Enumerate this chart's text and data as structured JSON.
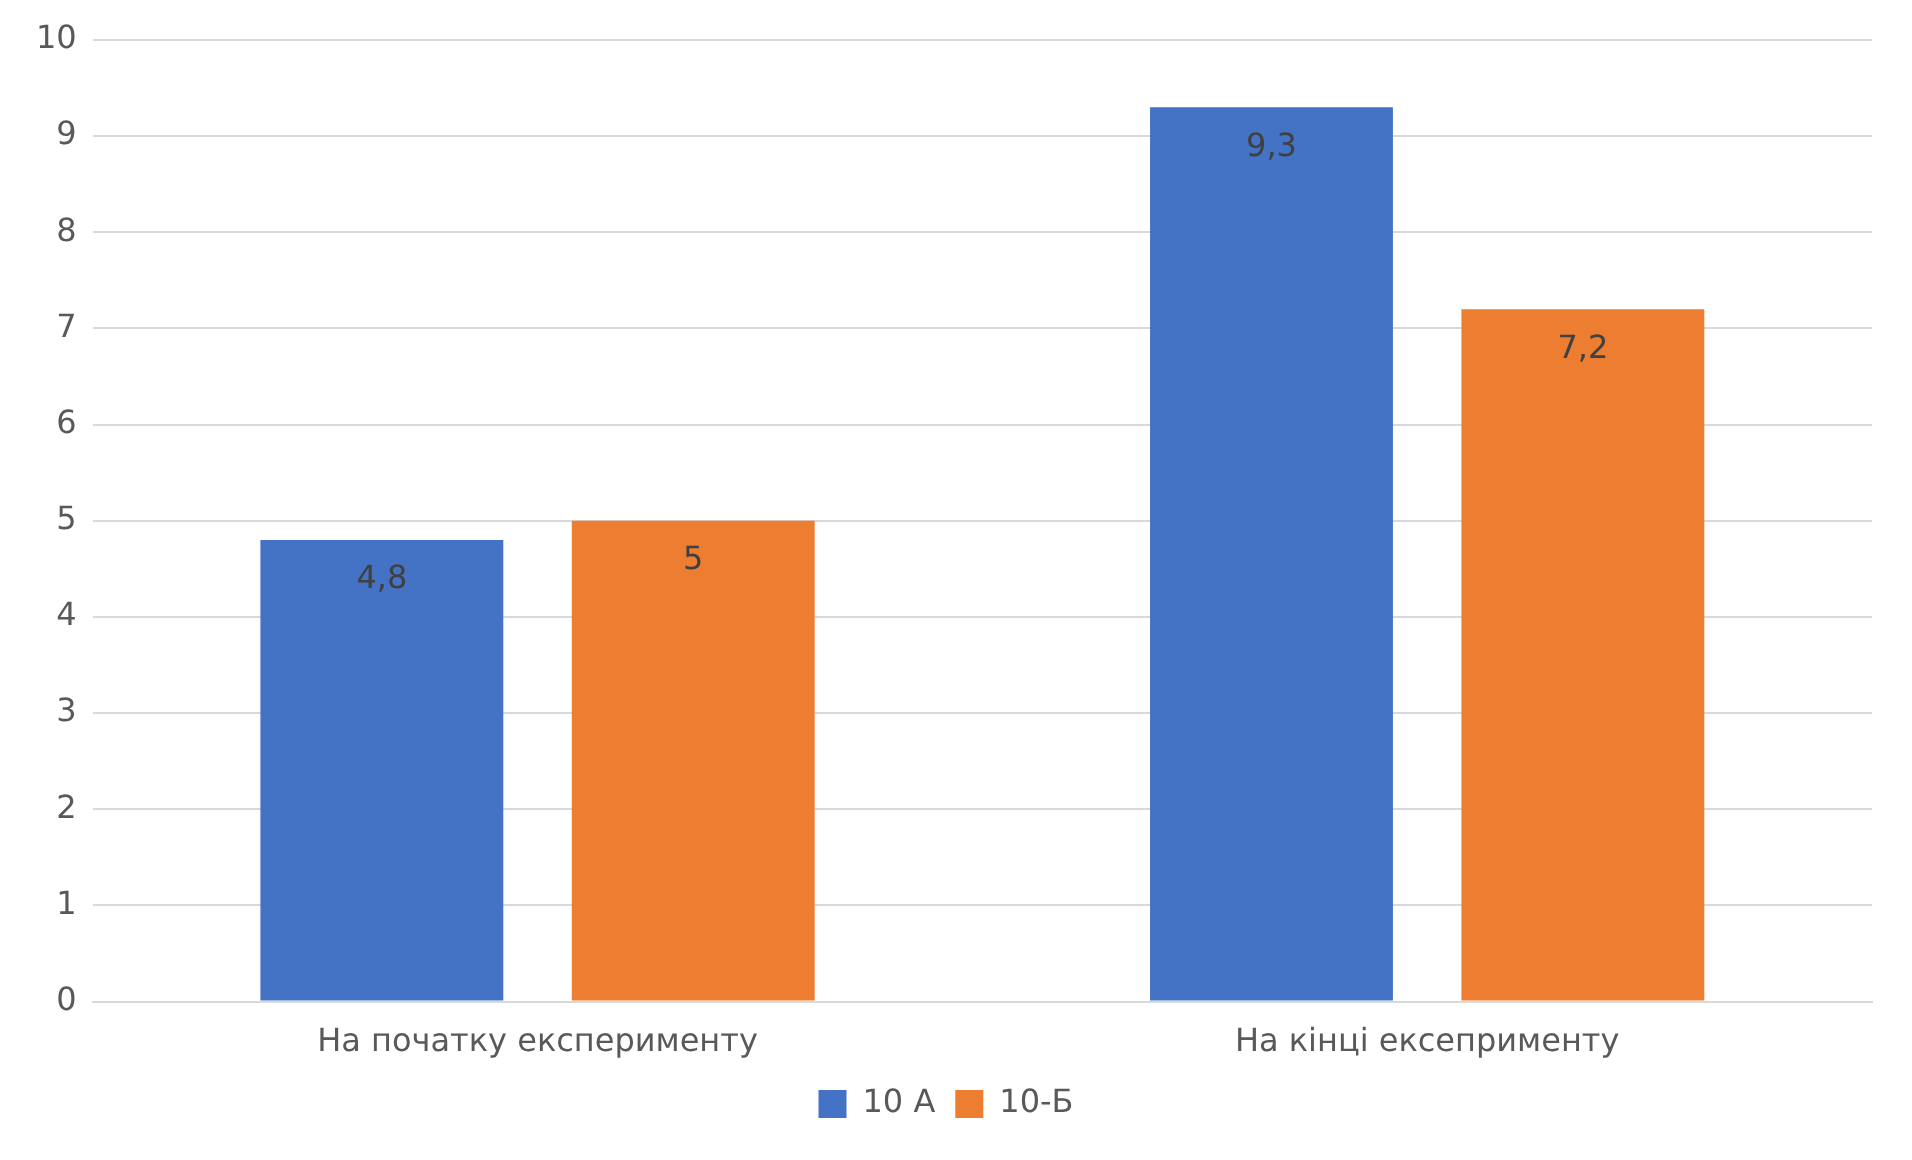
{
  "chart_data": {
    "type": "bar",
    "categories": [
      "На початку експерименту",
      "На кінці ексеприменту"
    ],
    "series": [
      {
        "name": "10 А",
        "color": "#4472c4",
        "values": [
          4.8,
          9.3
        ],
        "value_labels": [
          "4,8",
          "9,3"
        ]
      },
      {
        "name": "10-Б",
        "color": "#ed7d31",
        "values": [
          5,
          7.2
        ],
        "value_labels": [
          "5",
          "7,2"
        ]
      }
    ],
    "ylim": [
      0,
      10
    ],
    "yticks": [
      0,
      1,
      2,
      3,
      4,
      5,
      6,
      7,
      8,
      9,
      10
    ],
    "grid": "y",
    "legend": "bottom"
  }
}
